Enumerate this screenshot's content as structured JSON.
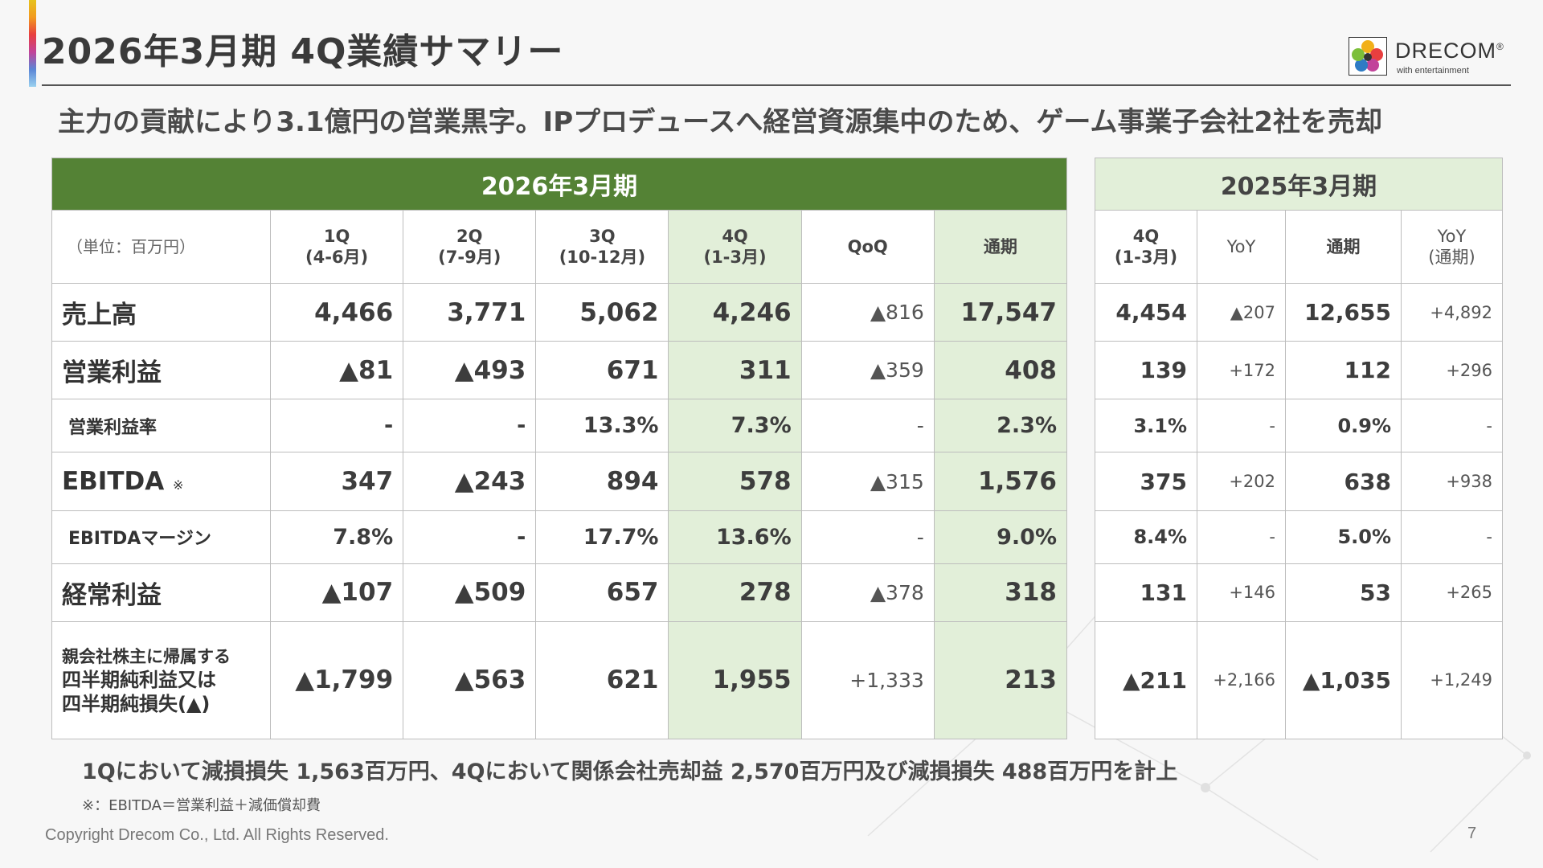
{
  "title": "2026年3月期 4Q業績サマリー",
  "subtitle": "主力の貢献により3.1億円の営業黒字。IPプロデュースへ経営資源集中のため、ゲーム事業子会社2社を売却",
  "logo": {
    "word": "DRECOM",
    "trademark": "®",
    "tagline": "with entertainment"
  },
  "colors": {
    "green_band": "#548235",
    "light_green": "#e2efd9"
  },
  "current_fy": {
    "label": "2026年3月期",
    "unit_label": "（単位：百万円）",
    "columns": [
      {
        "line1": "1Q",
        "line2": "(4-6月)"
      },
      {
        "line1": "2Q",
        "line2": "(7-9月)"
      },
      {
        "line1": "3Q",
        "line2": "(10-12月)"
      },
      {
        "line1": "4Q",
        "line2": "(1-3月)"
      },
      {
        "line1": "QoQ",
        "line2": ""
      },
      {
        "line1": "通期",
        "line2": ""
      }
    ]
  },
  "prior_fy": {
    "label": "2025年3月期",
    "columns": [
      {
        "line1": "4Q",
        "line2": "(1-3月)"
      },
      {
        "line1": "YoY",
        "line2": ""
      },
      {
        "line1": "通期",
        "line2": ""
      },
      {
        "line1": "YoY",
        "line2": "(通期)"
      }
    ]
  },
  "rows": [
    {
      "label": "売上高",
      "note": "",
      "values": [
        "4,466",
        "3,771",
        "5,062",
        "4,246",
        "▲816",
        "17,547"
      ],
      "prior": [
        "4,454",
        "▲207",
        "12,655",
        "+4,892"
      ]
    },
    {
      "label": "営業利益",
      "note": "",
      "values": [
        "▲81",
        "▲493",
        "671",
        "311",
        "▲359",
        "408"
      ],
      "prior": [
        "139",
        "+172",
        "112",
        "+296"
      ]
    },
    {
      "label": "営業利益率",
      "note": "",
      "values": [
        "-",
        "-",
        "13.3%",
        "7.3%",
        "-",
        "2.3%"
      ],
      "prior": [
        "3.1%",
        "-",
        "0.9%",
        "-"
      ]
    },
    {
      "label": "EBITDA",
      "note": "※",
      "values": [
        "347",
        "▲243",
        "894",
        "578",
        "▲315",
        "1,576"
      ],
      "prior": [
        "375",
        "+202",
        "638",
        "+938"
      ]
    },
    {
      "label": "EBITDAマージン",
      "note": "",
      "values": [
        "7.8%",
        "-",
        "17.7%",
        "13.6%",
        "-",
        "9.0%"
      ],
      "prior": [
        "8.4%",
        "-",
        "5.0%",
        "-"
      ]
    },
    {
      "label": "経常利益",
      "note": "",
      "values": [
        "▲107",
        "▲509",
        "657",
        "278",
        "▲378",
        "318"
      ],
      "prior": [
        "131",
        "+146",
        "53",
        "+265"
      ]
    },
    {
      "label_line1": "親会社株主に帰属する",
      "label_line2": "四半期純利益又は",
      "label_line3": "四半期純損失(▲)",
      "values": [
        "▲1,799",
        "▲563",
        "621",
        "1,955",
        "+1,333",
        "213"
      ],
      "prior": [
        "▲211",
        "+2,166",
        "▲1,035",
        "+1,249"
      ]
    }
  ],
  "footnote_main": "1Qにおいて減損損失 1,563百万円、4Qにおいて関係会社売却益 2,570百万円及び減損損失 488百万円を計上",
  "footnote_ebitda": "※：EBITDA＝営業利益＋減価償却費",
  "copyright": "Copyright Drecom Co., Ltd. All Rights Reserved.",
  "page_number": "7"
}
